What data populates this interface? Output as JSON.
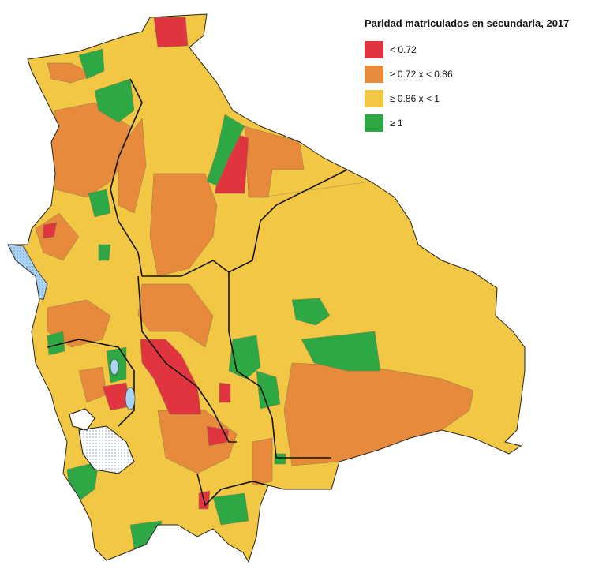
{
  "legend": {
    "title": "Paridad matriculados en secundaria, 2017",
    "items": [
      {
        "label": "< 0.72",
        "color": "#e0353f"
      },
      {
        "label": "≥ 0.72 x < 0.86",
        "color": "#e88a3c"
      },
      {
        "label": "≥ 0.86 x < 1",
        "color": "#f2c744"
      },
      {
        "label": "≥ 1",
        "color": "#2ea844"
      }
    ]
  }
}
